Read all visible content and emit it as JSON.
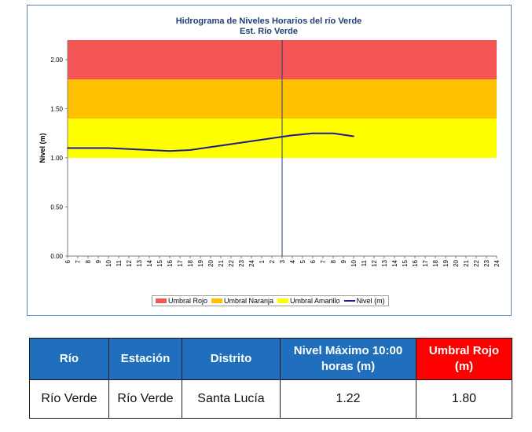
{
  "chart_data": {
    "type": "line",
    "title": "Hidrograma de Niveles Horarios del río Verde",
    "subtitle": "Est. Río Verde",
    "ylabel": "Nivel (m)",
    "ylim": [
      0,
      2.2
    ],
    "yticks": [
      "0.00",
      "0.50",
      "1.00",
      "1.50",
      "2.00"
    ],
    "x_labels": [
      "6",
      "7",
      "8",
      "9",
      "10",
      "11",
      "12",
      "13",
      "14",
      "15",
      "16",
      "17",
      "18",
      "19",
      "20",
      "21",
      "22",
      "23",
      "24",
      "1",
      "2",
      "3",
      "4",
      "5",
      "6",
      "7",
      "8",
      "9",
      "10",
      "11",
      "12",
      "13",
      "14",
      "15",
      "16",
      "17",
      "18",
      "19",
      "20",
      "21",
      "22",
      "23",
      "24"
    ],
    "thresholds": [
      {
        "name": "Umbral Rojo",
        "from": 1.8,
        "to": 2.2,
        "color": "#f45555"
      },
      {
        "name": "Umbral Naranja",
        "from": 1.4,
        "to": 1.8,
        "color": "#ffc000"
      },
      {
        "name": "Umbral Amarillo",
        "from": 1.0,
        "to": 1.4,
        "color": "#ffff00"
      }
    ],
    "series": [
      {
        "name": "Nivel (m)",
        "color": "#1c1c8f",
        "x_index": [
          0,
          2,
          4,
          6,
          8,
          10,
          12,
          14,
          16,
          18,
          20,
          22,
          24,
          26,
          28
        ],
        "values": [
          1.1,
          1.1,
          1.1,
          1.09,
          1.08,
          1.07,
          1.08,
          1.11,
          1.14,
          1.17,
          1.2,
          1.23,
          1.25,
          1.25,
          1.22
        ]
      }
    ],
    "vline_index": 21,
    "legend": [
      "Umbral Rojo",
      "Umbral Naranja",
      "Umbral Amarillo",
      "Nivel (m)"
    ],
    "legend_position": "bottom"
  },
  "table": {
    "headers": [
      "Río",
      "Estación",
      "Distrito",
      "Nivel Máximo 10:00 horas (m)",
      "Umbral Rojo (m)"
    ],
    "row": [
      "Río Verde",
      "Río Verde",
      "Santa Lucía",
      "1.22",
      "1.80"
    ]
  },
  "colors": {
    "header_blue": "#1f6fbd",
    "header_red": "#ff0000"
  }
}
